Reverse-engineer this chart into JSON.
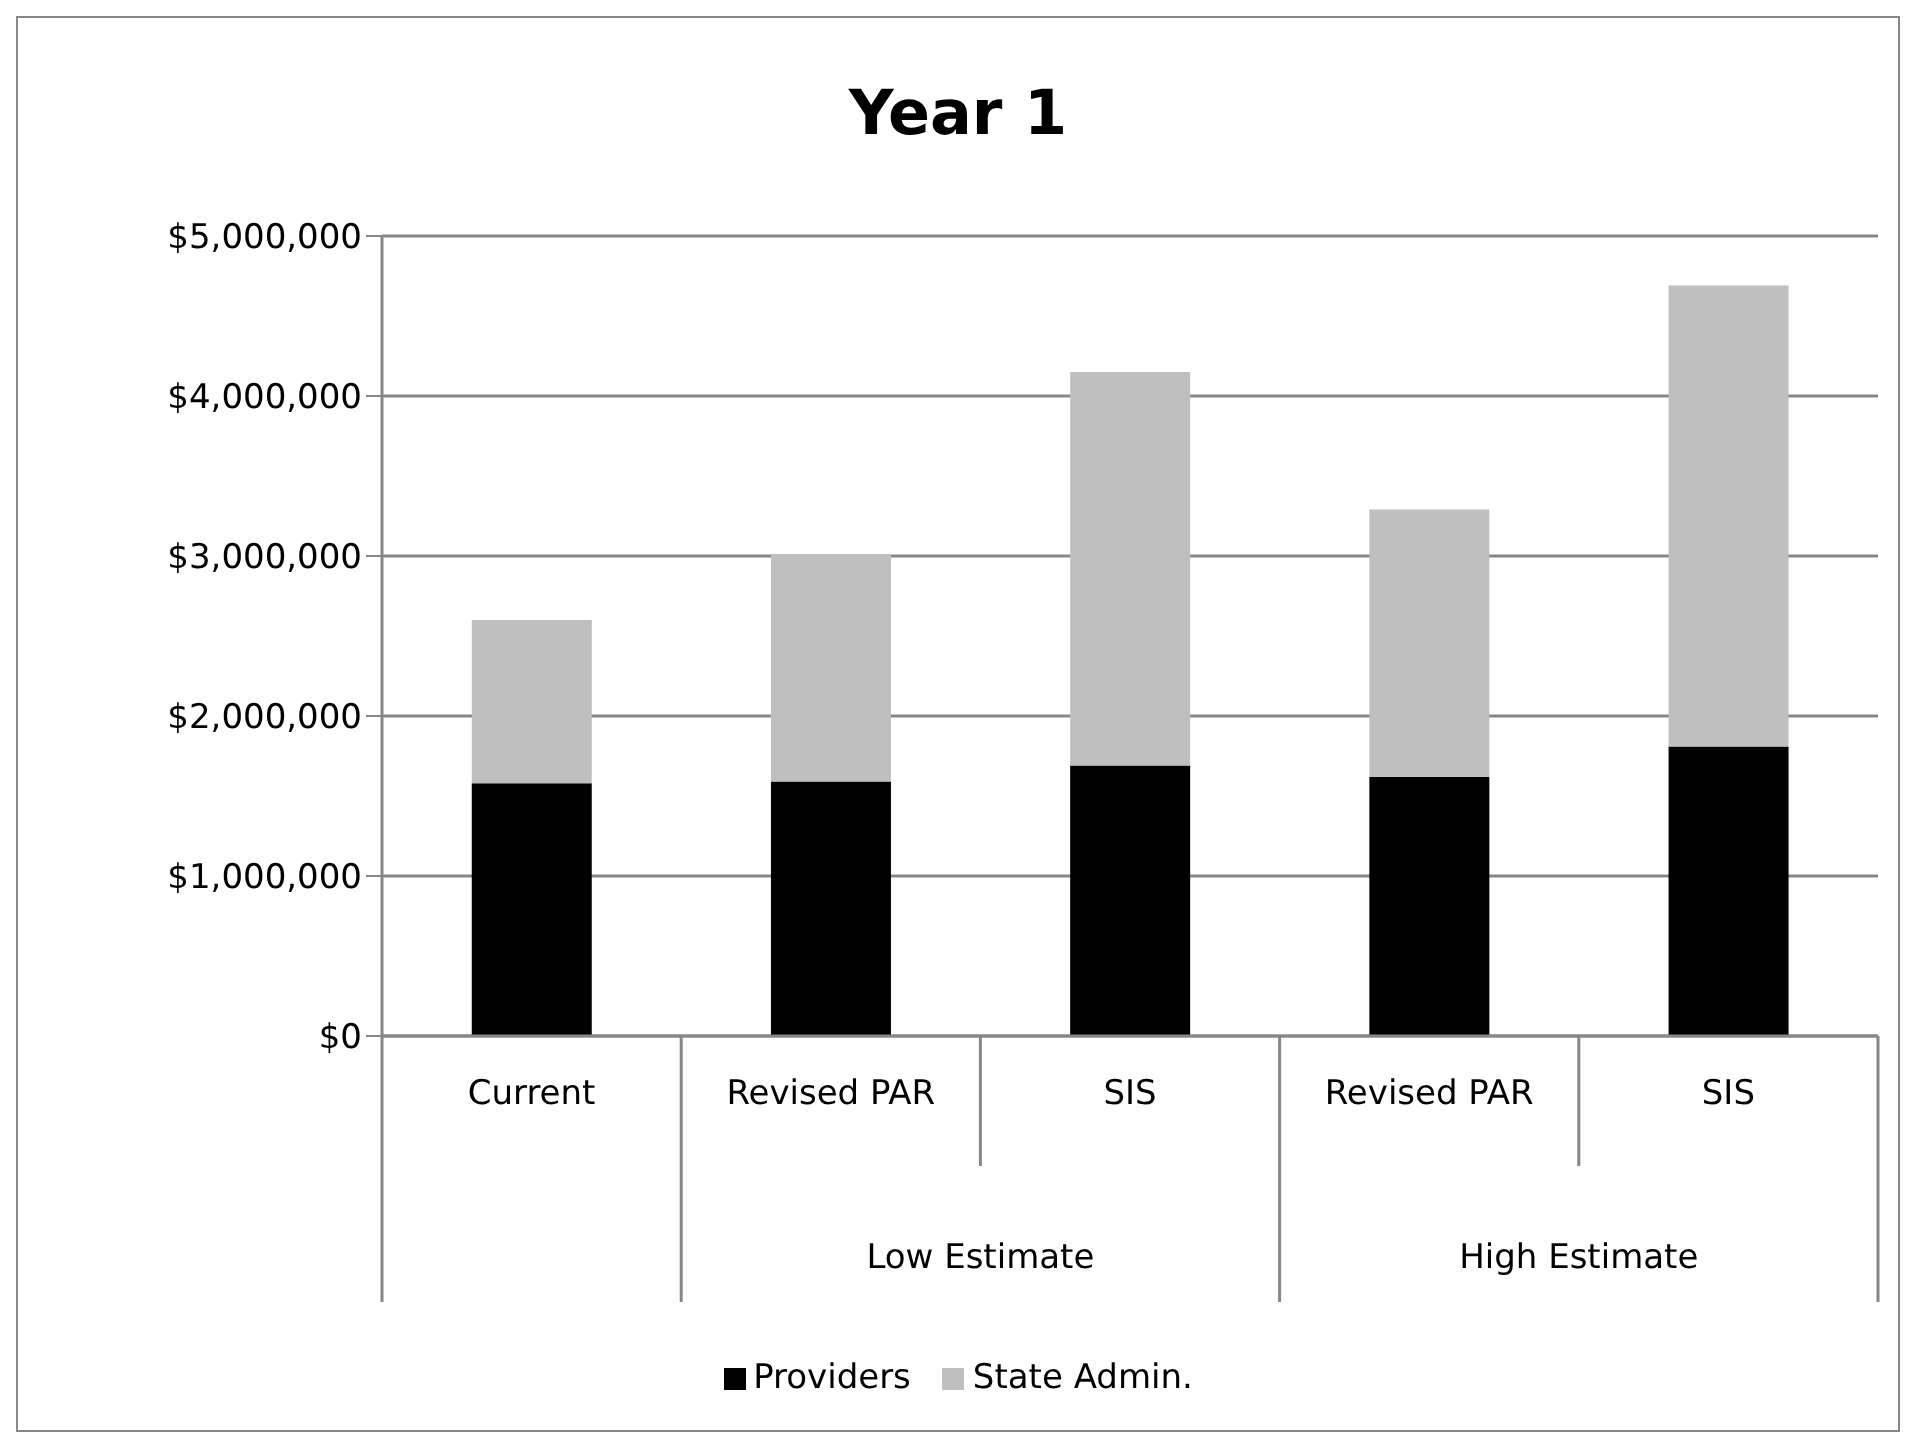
{
  "chart_data": {
    "type": "bar",
    "title": "Year 1",
    "categories": [
      "Current",
      "Revised PAR",
      "SIS",
      "Revised PAR",
      "SIS"
    ],
    "series": [
      {
        "name": "Providers",
        "color": "#000000",
        "values": [
          1580000,
          1590000,
          1690000,
          1620000,
          1810000
        ]
      },
      {
        "name": "State Admin.",
        "color": "#bfbfbf",
        "values": [
          1020000,
          1420000,
          2460000,
          1670000,
          2880000
        ]
      }
    ],
    "stacked": true,
    "annotations": [
      "Low Estimate",
      "High Estimate"
    ],
    "ylim": [
      0,
      5000000
    ],
    "yticks": [
      {
        "value": 0,
        "label": "$0"
      },
      {
        "value": 1000000,
        "label": "$1,000,000"
      },
      {
        "value": 2000000,
        "label": "$2,000,000"
      },
      {
        "value": 3000000,
        "label": "$3,000,000"
      },
      {
        "value": 4000000,
        "label": "$4,000,000"
      },
      {
        "value": 5000000,
        "label": "$5,000,000"
      }
    ],
    "grid": "y",
    "legend": "bottom"
  }
}
